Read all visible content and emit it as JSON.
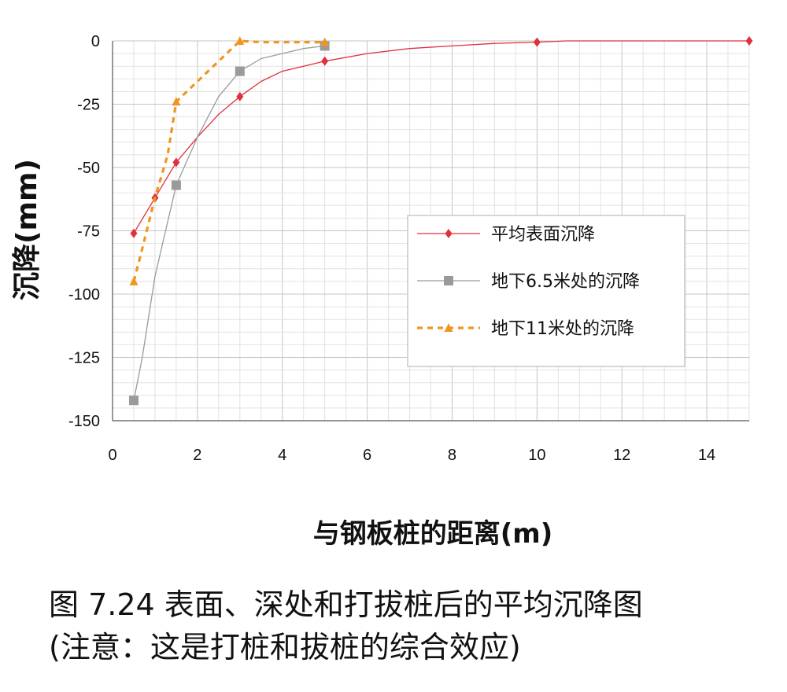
{
  "caption": {
    "line1": "图 7.24 表面、深处和打拔桩后的平均沉降图",
    "line2": "(注意：这是打桩和拔桩的综合效应)"
  },
  "chart_data": {
    "type": "line",
    "xlabel": "与钢板桩的距离(m)",
    "ylabel": "沉降(mm)",
    "xlim": [
      0,
      15
    ],
    "ylim": [
      -150,
      0
    ],
    "xticks": [
      0,
      2,
      4,
      6,
      8,
      10,
      12,
      14
    ],
    "yticks": [
      0,
      -25,
      -50,
      -75,
      -100,
      -125,
      -150
    ],
    "grid": true,
    "legend_position": "right",
    "series": [
      {
        "name": "平均表面沉降",
        "color": "#e0303c",
        "marker": "diamond",
        "dash": "solid",
        "x": [
          0.5,
          1.0,
          1.5,
          2.0,
          2.5,
          3.0,
          3.5,
          4.0,
          4.5,
          5.0,
          6.0,
          7.0,
          8.0,
          9.0,
          10.0,
          10.7,
          15.0
        ],
        "y": [
          -76,
          -62,
          -48,
          -38,
          -29,
          -22,
          -16,
          -12,
          -10,
          -8,
          -5,
          -3,
          -2,
          -1,
          -0.5,
          0,
          0
        ],
        "markers_at": [
          0.5,
          1.0,
          1.5,
          3.0,
          5.0,
          10.0,
          15.0
        ]
      },
      {
        "name": "地下6.5米处的沉降",
        "color": "#9a9a9a",
        "marker": "square",
        "dash": "solid",
        "x": [
          0.5,
          0.7,
          1.0,
          1.5,
          2.0,
          2.5,
          3.0,
          3.5,
          4.0,
          4.5,
          5.0
        ],
        "y": [
          -142,
          -125,
          -93,
          -57,
          -38,
          -22,
          -12,
          -7,
          -5,
          -3,
          -2
        ],
        "markers_at": [
          0.5,
          1.5,
          3.0,
          5.0
        ]
      },
      {
        "name": "地下11米处的沉降",
        "color": "#f0961e",
        "marker": "triangle",
        "dash": "dashed",
        "x": [
          0.5,
          0.7,
          1.0,
          1.3,
          1.5,
          2.0,
          2.5,
          3.0,
          3.5,
          4.0,
          4.5,
          5.0
        ],
        "y": [
          -95,
          -82,
          -62,
          -45,
          -24,
          -16,
          -8,
          0,
          -0.5,
          -0.5,
          -0.5,
          -0.5
        ],
        "markers_at": [
          0.5,
          1.5,
          3.0,
          5.0
        ]
      }
    ]
  }
}
